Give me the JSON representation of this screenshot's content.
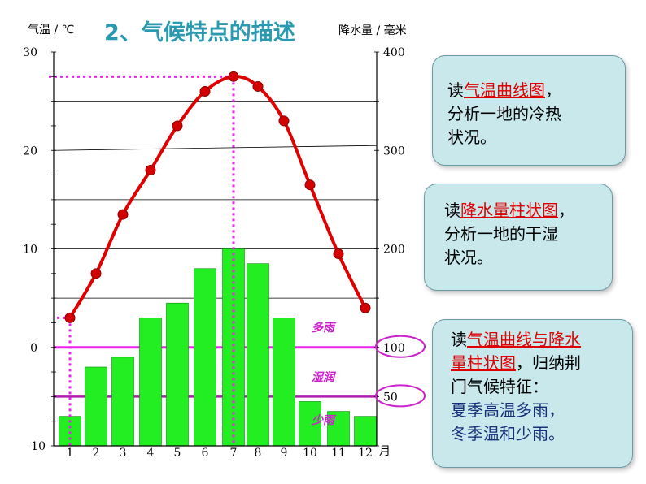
{
  "title": "2、气候特点的描述",
  "chart_data": {
    "type": "bar+line",
    "x_categories": [
      "1",
      "2",
      "3",
      "4",
      "5",
      "6",
      "7",
      "8",
      "9",
      "10",
      "11",
      "12"
    ],
    "x_unit": "月",
    "left_axis": {
      "label": "气温 / ℃",
      "ticks": [
        -10,
        0,
        10,
        20,
        30
      ],
      "range": [
        -10,
        30
      ]
    },
    "right_axis": {
      "label": "降水量 / 毫米",
      "ticks": [
        50,
        100,
        200,
        300,
        400
      ],
      "range": [
        0,
        400
      ]
    },
    "temperature": [
      3,
      7.5,
      13.5,
      18,
      22.5,
      26,
      27.5,
      26.5,
      23,
      16.5,
      9.5,
      4
    ],
    "precipitation": [
      30,
      80,
      90,
      130,
      145,
      180,
      200,
      185,
      130,
      45,
      35,
      30
    ],
    "annotations": [
      "多雨",
      "湿润",
      "少雨"
    ],
    "reference_marks": [
      "100",
      "50"
    ]
  },
  "colors": {
    "line": "#e00000",
    "bar": "#22ee22",
    "guide": "#ee22ee",
    "box": "#c8e8ec"
  },
  "boxes": {
    "box1": {
      "prefix": "读",
      "highlight": "气温曲线图",
      "suffix": "，",
      "line2": "分析一地的冷热",
      "line3": "状况。"
    },
    "box2": {
      "prefix": "读",
      "highlight": "降水量柱状图",
      "suffix": "，",
      "line2": "分析一地的干湿",
      "line3": "状况。"
    },
    "box3": {
      "prefix": "读",
      "highlight_a": "气温曲线与降水",
      "highlight_b": "量柱状图",
      "suffix": "，归纳荆",
      "line3": "门气候特征：",
      "line4": "夏季高温多雨，",
      "line5": "冬季温和少雨。"
    }
  }
}
